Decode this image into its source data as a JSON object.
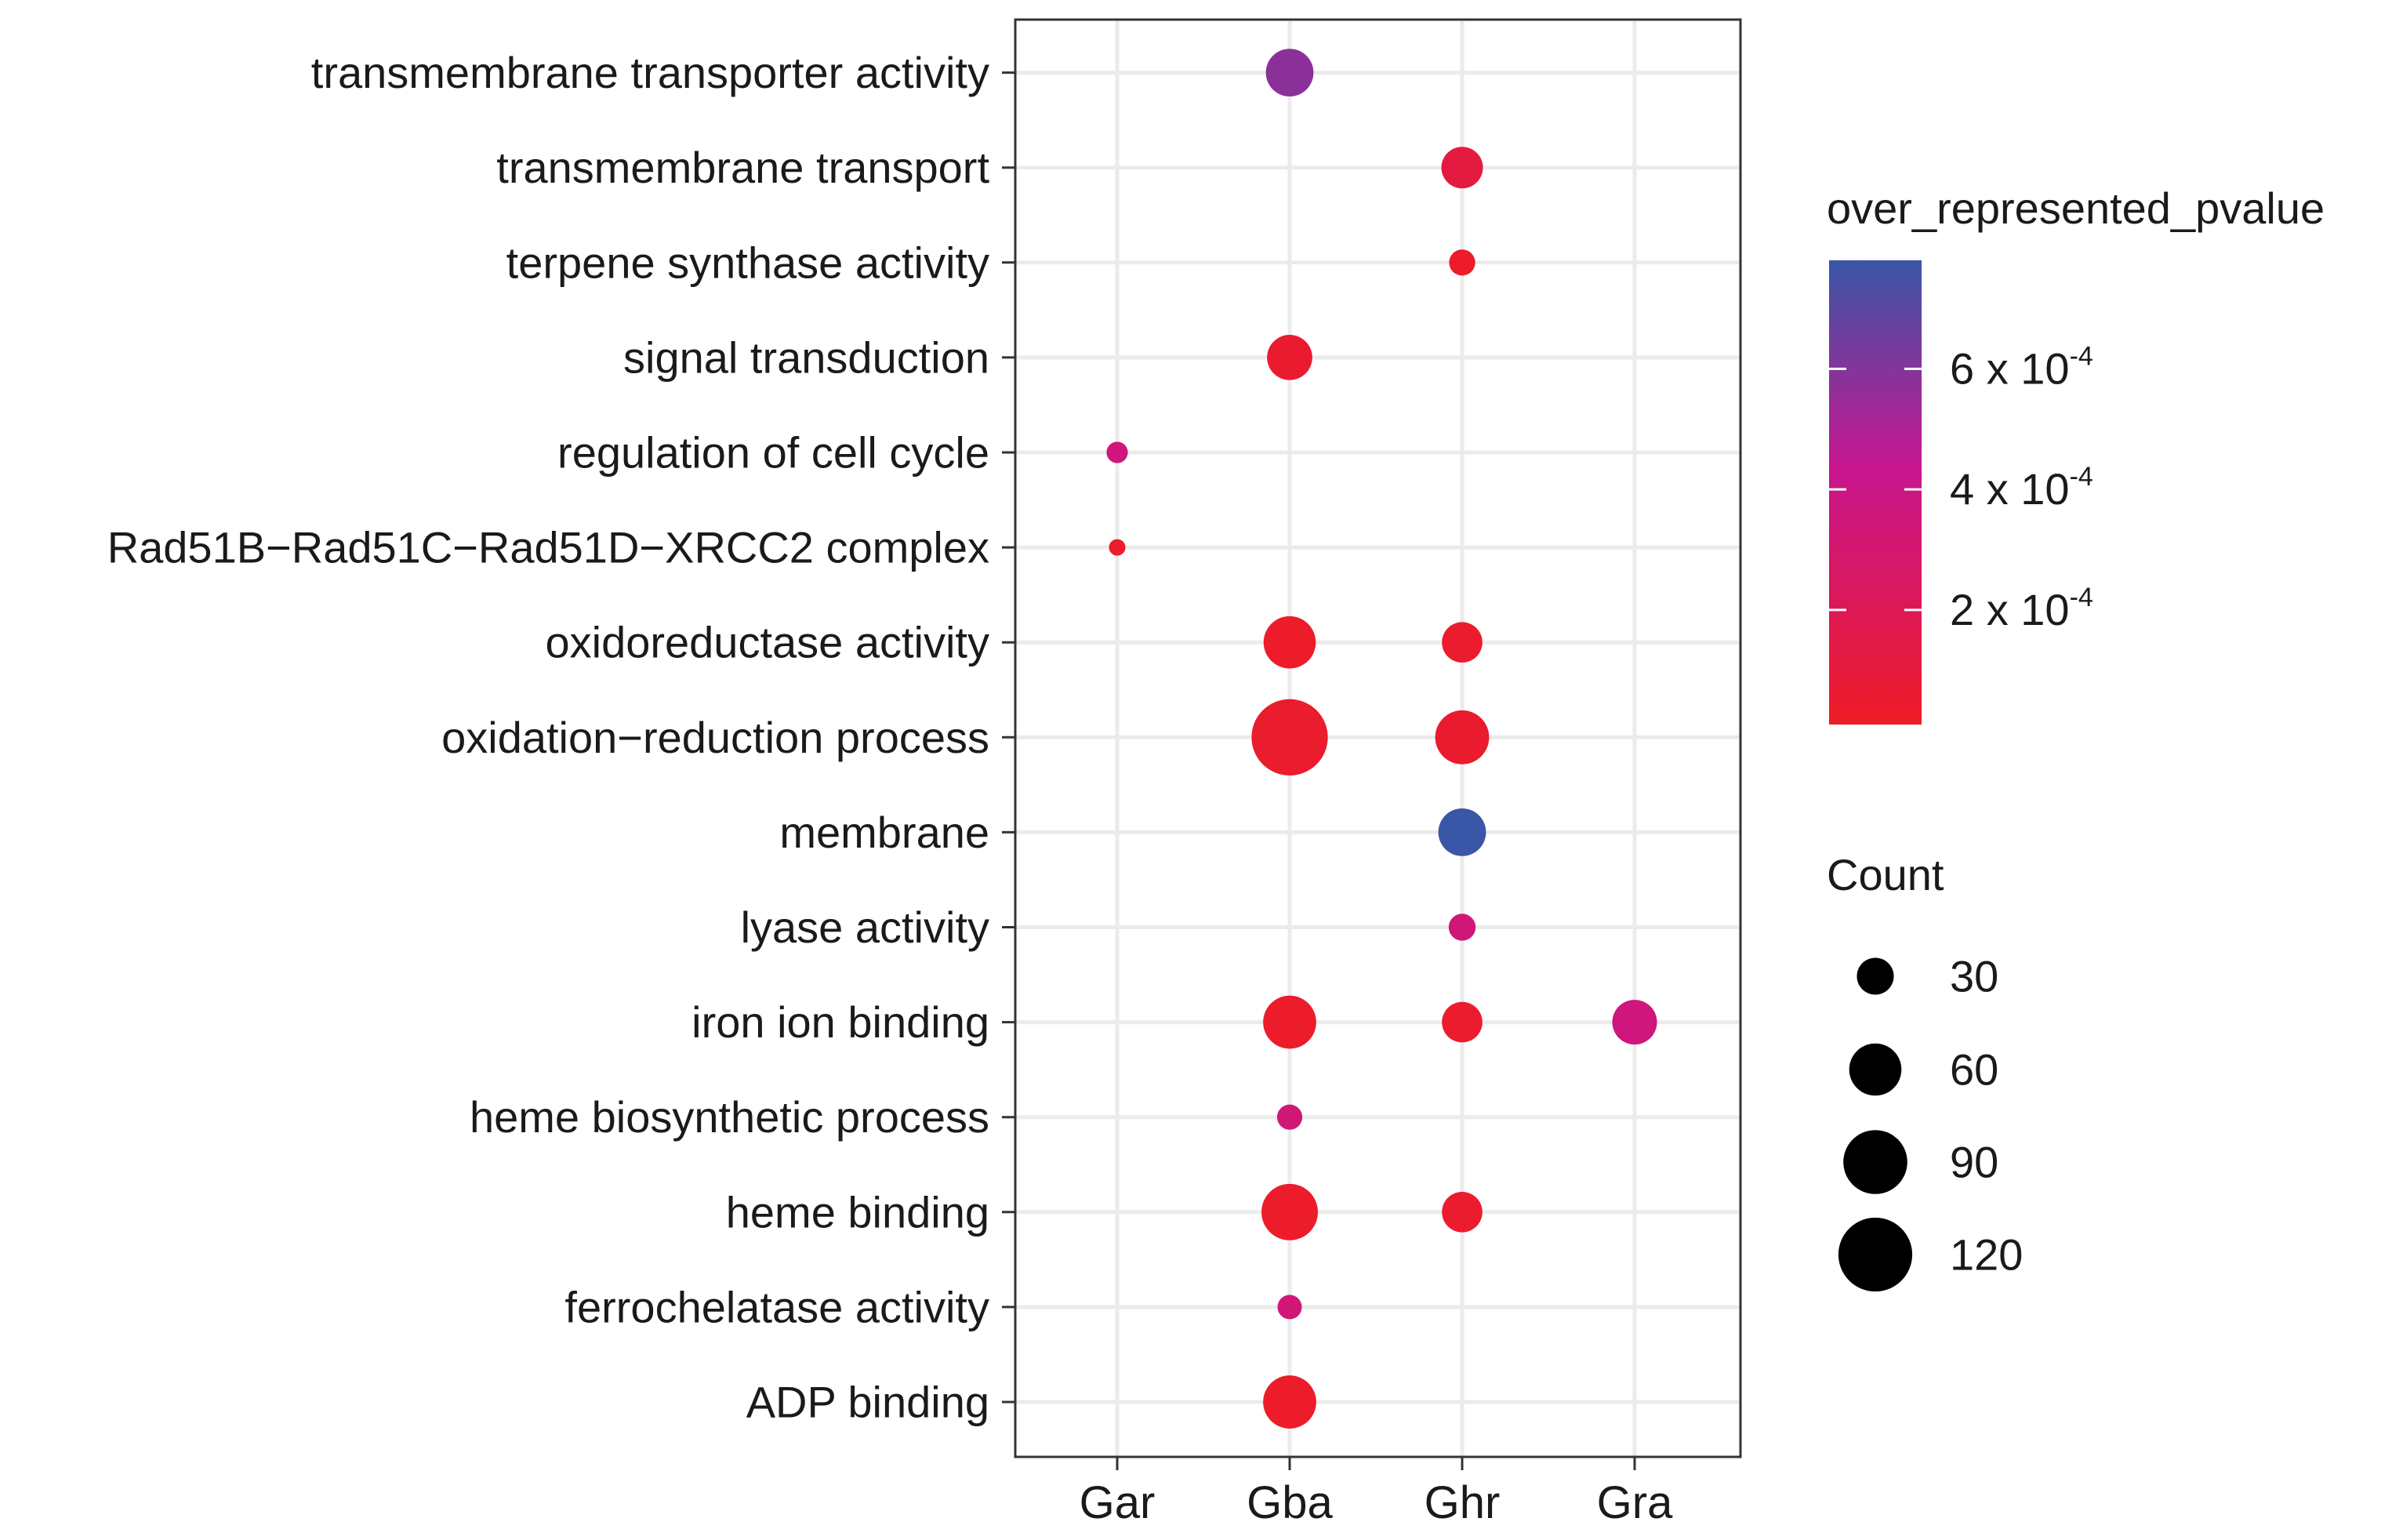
{
  "chart_data": {
    "type": "scatter",
    "subtype": "dot-plot",
    "title": "",
    "xlabel": "",
    "ylabel": "",
    "x_categories": [
      "Gar",
      "Gba",
      "Ghr",
      "Gra"
    ],
    "y_categories": [
      "ADP binding",
      "ferrochelatase activity",
      "heme binding",
      "heme biosynthetic process",
      "iron ion binding",
      "lyase activity",
      "membrane",
      "oxidation−reduction process",
      "oxidoreductase activity",
      "Rad51B−Rad51C−Rad51D−XRCC2 complex",
      "regulation of cell cycle",
      "signal transduction",
      "terpene synthase activity",
      "transmembrane transport",
      "transmembrane transporter activity"
    ],
    "points": [
      {
        "x": "Gba",
        "y": "transmembrane transporter activity",
        "count": 50,
        "pvalue": 0.00058
      },
      {
        "x": "Ghr",
        "y": "transmembrane transport",
        "count": 38,
        "pvalue": 0.00012
      },
      {
        "x": "Ghr",
        "y": "terpene synthase activity",
        "count": 15,
        "pvalue": 3e-05
      },
      {
        "x": "Gba",
        "y": "signal transduction",
        "count": 45,
        "pvalue": 5e-05
      },
      {
        "x": "Gar",
        "y": "regulation of cell cycle",
        "count": 10,
        "pvalue": 0.00036
      },
      {
        "x": "Gar",
        "y": "Rad51B−Rad51C−Rad51D−XRCC2 complex",
        "count": 6,
        "pvalue": 4e-05
      },
      {
        "x": "Gba",
        "y": "oxidoreductase activity",
        "count": 60,
        "pvalue": 3e-05
      },
      {
        "x": "Ghr",
        "y": "oxidoreductase activity",
        "count": 36,
        "pvalue": 4e-05
      },
      {
        "x": "Gba",
        "y": "oxidation−reduction process",
        "count": 128,
        "pvalue": 4e-05
      },
      {
        "x": "Ghr",
        "y": "oxidation−reduction process",
        "count": 64,
        "pvalue": 5e-05
      },
      {
        "x": "Ghr",
        "y": "membrane",
        "count": 50,
        "pvalue": 0.00078
      },
      {
        "x": "Ghr",
        "y": "lyase activity",
        "count": 16,
        "pvalue": 0.00034
      },
      {
        "x": "Gba",
        "y": "iron ion binding",
        "count": 62,
        "pvalue": 3e-05
      },
      {
        "x": "Ghr",
        "y": "iron ion binding",
        "count": 36,
        "pvalue": 4e-05
      },
      {
        "x": "Gra",
        "y": "iron ion binding",
        "count": 44,
        "pvalue": 0.00036
      },
      {
        "x": "Gba",
        "y": "heme biosynthetic process",
        "count": 14,
        "pvalue": 0.00034
      },
      {
        "x": "Gba",
        "y": "heme binding",
        "count": 70,
        "pvalue": 3e-05
      },
      {
        "x": "Ghr",
        "y": "heme binding",
        "count": 36,
        "pvalue": 4e-05
      },
      {
        "x": "Gba",
        "y": "ferrochelatase activity",
        "count": 13,
        "pvalue": 0.00034
      },
      {
        "x": "Gba",
        "y": "ADP binding",
        "count": 62,
        "pvalue": 3e-05
      }
    ],
    "color_legend": {
      "title": "over_represented_pvalue",
      "range": [
        1e-05,
        0.00078
      ],
      "ticks": [
        {
          "value": 0.0002,
          "base": "2 x 10",
          "exp": "-4"
        },
        {
          "value": 0.0004,
          "base": "4 x 10",
          "exp": "-4"
        },
        {
          "value": 0.0006,
          "base": "6 x 10",
          "exp": "-4"
        }
      ],
      "low_color": "#ee1c25",
      "mid_color": "#c7158f",
      "high_color": "#3a56a6"
    },
    "size_legend": {
      "title": "Count",
      "breaks": [
        30,
        60,
        90,
        120
      ],
      "labels": [
        "30",
        "60",
        "90",
        "120"
      ]
    },
    "grid": true,
    "legend_position": "right"
  }
}
